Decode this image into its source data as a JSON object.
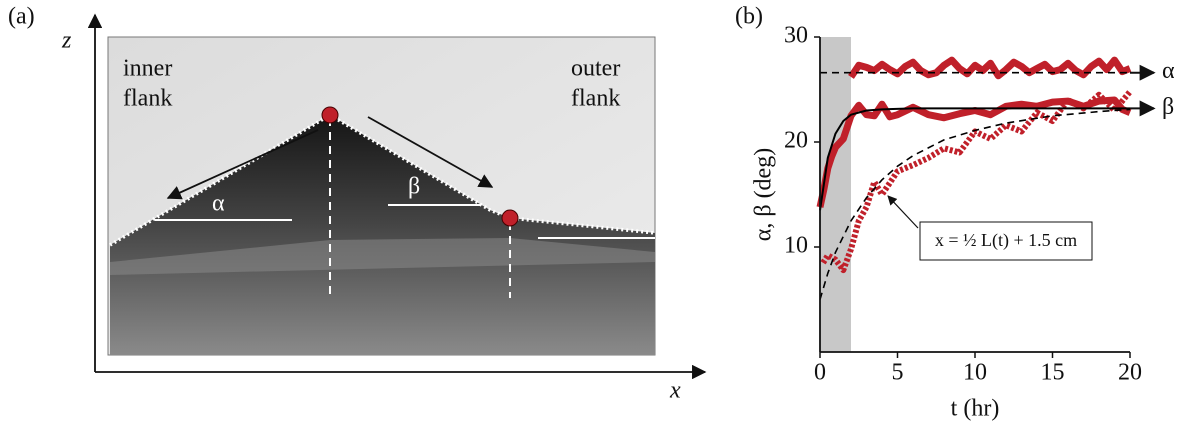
{
  "panel_a": {
    "label": "(a)",
    "z_axis": "z",
    "x_axis": "x",
    "inner_flank": [
      "inner",
      "flank"
    ],
    "outer_flank": [
      "outer",
      "flank"
    ],
    "alpha": "α",
    "beta": "β"
  },
  "chart_data": {
    "type": "line",
    "label": "(b)",
    "x_label": "t (hr)",
    "y_label": "α, β (deg)",
    "xlim": [
      0,
      20
    ],
    "ylim": [
      0,
      30
    ],
    "xticks": [
      0,
      5,
      10,
      15,
      20
    ],
    "yticks": [
      10,
      20,
      30
    ],
    "shade": {
      "xlim": [
        0,
        2
      ],
      "color": "#c8c8c8"
    },
    "annotation": "x = ½ L(t) + 1.5 cm",
    "series": [
      {
        "color": "#c0202a",
        "style": "solid",
        "width": 7,
        "x": [
          2,
          2.5,
          3,
          3.5,
          4,
          4.5,
          5,
          5.5,
          6,
          6.5,
          7,
          7.5,
          8,
          8.5,
          9,
          9.5,
          10,
          10.5,
          11,
          11.5,
          12,
          12.5,
          13,
          13.5,
          14,
          14.5,
          15,
          15.5,
          16,
          16.5,
          17,
          17.5,
          18,
          18.5,
          19,
          19.5,
          20
        ],
        "values": [
          26.2,
          27.3,
          27.1,
          26.8,
          27.4,
          26.9,
          26.5,
          27.2,
          27.6,
          26.8,
          26.4,
          26.6,
          27.3,
          27.8,
          27.0,
          26.5,
          27.3,
          26.8,
          27.5,
          26.3,
          26.9,
          27.6,
          27.2,
          26.6,
          27.0,
          27.4,
          26.7,
          26.9,
          27.5,
          26.8,
          26.4,
          27.2,
          27.7,
          26.9,
          27.8,
          26.7,
          27.0
        ]
      },
      {
        "color": "#c0202a",
        "style": "solid",
        "width": 7,
        "x": [
          0,
          0.25,
          0.5,
          0.75,
          1,
          1.5,
          2,
          2.5,
          3,
          3.5,
          4,
          4.5,
          5,
          6,
          7,
          8,
          9,
          10,
          11,
          12,
          13,
          14,
          15,
          16,
          17,
          18,
          19,
          19.5,
          20
        ],
        "values": [
          13.8,
          15.5,
          17.5,
          18.6,
          19.5,
          20.3,
          22.5,
          23.5,
          22.6,
          22.5,
          23.6,
          22.4,
          22.6,
          23.3,
          22.6,
          22.3,
          22.7,
          23.0,
          22.6,
          23.4,
          23.6,
          23.4,
          23.8,
          23.9,
          23.4,
          23.9,
          24.0,
          23.1,
          22.8
        ]
      },
      {
        "color": "#c0202a",
        "style": "dotted",
        "width": 6,
        "x": [
          0.2,
          0.5,
          1,
          1.5,
          2,
          2.5,
          3,
          3.5,
          4,
          5,
          6,
          7,
          8,
          9,
          10,
          11,
          12,
          13,
          14,
          15,
          16,
          17,
          18,
          19,
          20
        ],
        "values": [
          8.5,
          9.2,
          8.8,
          7.8,
          9.8,
          12.5,
          13.8,
          16.2,
          15.0,
          17.2,
          17.8,
          18.5,
          19.4,
          19.0,
          21.0,
          20.3,
          21.6,
          21.0,
          22.8,
          22.0,
          24.0,
          23.2,
          24.5,
          23.0,
          24.8
        ]
      },
      {
        "name": "α",
        "color": "#000000",
        "style": "dashed",
        "width": 1.6,
        "x": [
          0,
          20
        ],
        "values": [
          26.6,
          26.6
        ]
      },
      {
        "name": "β",
        "color": "#000000",
        "style": "solid",
        "width": 2,
        "x": [
          0,
          0.5,
          1,
          1.5,
          2,
          3,
          4,
          6,
          10,
          20
        ],
        "values": [
          13.5,
          18.5,
          20.8,
          22,
          22.6,
          23,
          23.1,
          23.2,
          23.2,
          23.2
        ]
      },
      {
        "color": "#000000",
        "style": "dashed",
        "width": 1.6,
        "x": [
          0,
          0.5,
          1,
          2,
          3,
          4,
          5,
          6,
          8,
          10,
          12,
          15,
          18,
          20
        ],
        "values": [
          5.0,
          7.5,
          9.5,
          12.5,
          14.7,
          16.4,
          17.7,
          18.7,
          20.2,
          21.1,
          21.8,
          22.5,
          22.9,
          23.1
        ]
      }
    ]
  }
}
